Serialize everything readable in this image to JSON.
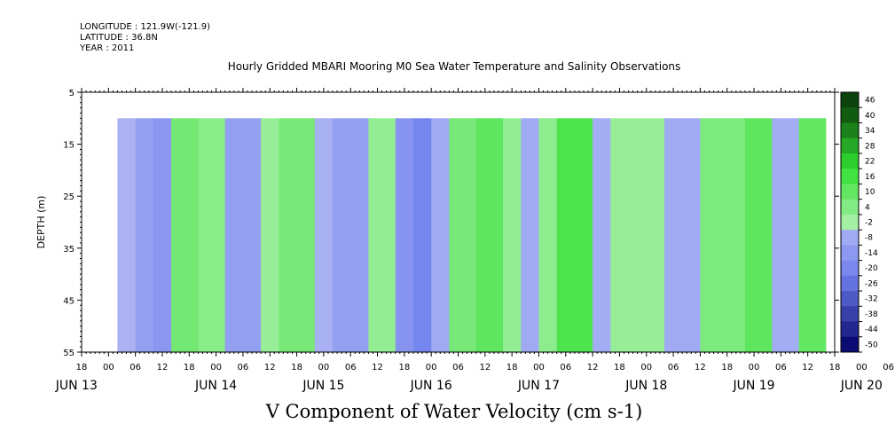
{
  "header": {
    "longitude": "LONGITUDE : 121.9W(-121.9)",
    "latitude": "LATITUDE : 36.8N",
    "year": "YEAR : 2011"
  },
  "chart_data": {
    "type": "heatmap",
    "title": "Hourly Gridded MBARI Mooring M0 Sea Water Temperature and Salinity Observations",
    "xlabel": "",
    "ylabel": "DEPTH (m)",
    "colorbar_label": "V Component of Water Velocity (cm s-1)",
    "ylim": [
      55,
      5
    ],
    "y_ticks": [
      5,
      15,
      25,
      35,
      45,
      55
    ],
    "data_depth_range": [
      10,
      55
    ],
    "x_hour_ticks": [
      "18",
      "00",
      "06",
      "12",
      "18",
      "00",
      "06",
      "12",
      "18",
      "00",
      "06",
      "12",
      "18",
      "00",
      "06",
      "12",
      "18",
      "00",
      "06",
      "12",
      "18",
      "00",
      "06",
      "12",
      "18",
      "00",
      "06",
      "12",
      "18",
      "00",
      "06",
      "12",
      "18",
      "00",
      "06",
      "12",
      "18"
    ],
    "x_day_labels": [
      "JUN 13",
      "JUN 14",
      "JUN 15",
      "JUN 16",
      "JUN 17",
      "JUN 18",
      "JUN 19",
      "JUN 20"
    ],
    "x_range_hours": [
      18,
      186
    ],
    "data_x_range_hours": [
      26,
      184
    ],
    "colorbar_levels": [
      48,
      46,
      40,
      34,
      28,
      22,
      16,
      10,
      4,
      -2,
      -8,
      -14,
      -20,
      -26,
      -32,
      -38,
      -44,
      -50
    ],
    "colorbar_labels": [
      "46",
      "40",
      "34",
      "28",
      "22",
      "16",
      "10",
      "4",
      "-2",
      "-8",
      "-14",
      "-20",
      "-26",
      "-32",
      "-38",
      "-44",
      "-50"
    ],
    "colors": {
      "pos_light": "#a8f0a8",
      "pos_mid": "#33e033",
      "pos_dark": "#0a3d0a",
      "neg_light": "#b0b8f4",
      "neg_mid": "#7080ee",
      "neg_dark": "#000066"
    },
    "bands": [
      {
        "start": 26,
        "end": 30,
        "v": -2
      },
      {
        "start": 30,
        "end": 34,
        "v": -9
      },
      {
        "start": 34,
        "end": 38,
        "v": -12
      },
      {
        "start": 38,
        "end": 44,
        "v": 10
      },
      {
        "start": 44,
        "end": 50,
        "v": 6
      },
      {
        "start": 50,
        "end": 58,
        "v": -9
      },
      {
        "start": 58,
        "end": 62,
        "v": 3
      },
      {
        "start": 62,
        "end": 70,
        "v": 9
      },
      {
        "start": 70,
        "end": 74,
        "v": -3
      },
      {
        "start": 74,
        "end": 82,
        "v": -9
      },
      {
        "start": 82,
        "end": 88,
        "v": 4
      },
      {
        "start": 88,
        "end": 92,
        "v": -13
      },
      {
        "start": 92,
        "end": 96,
        "v": -18
      },
      {
        "start": 96,
        "end": 100,
        "v": -5
      },
      {
        "start": 100,
        "end": 106,
        "v": 9
      },
      {
        "start": 106,
        "end": 112,
        "v": 14
      },
      {
        "start": 112,
        "end": 116,
        "v": 4
      },
      {
        "start": 116,
        "end": 120,
        "v": -5
      },
      {
        "start": 120,
        "end": 124,
        "v": 5
      },
      {
        "start": 124,
        "end": 132,
        "v": 17
      },
      {
        "start": 132,
        "end": 136,
        "v": -4
      },
      {
        "start": 136,
        "end": 148,
        "v": 3
      },
      {
        "start": 148,
        "end": 156,
        "v": -5
      },
      {
        "start": 156,
        "end": 166,
        "v": 8
      },
      {
        "start": 166,
        "end": 172,
        "v": 14
      },
      {
        "start": 172,
        "end": 178,
        "v": -4
      },
      {
        "start": 178,
        "end": 184,
        "v": 13
      }
    ],
    "grid": false,
    "legend": "right colorbar"
  }
}
